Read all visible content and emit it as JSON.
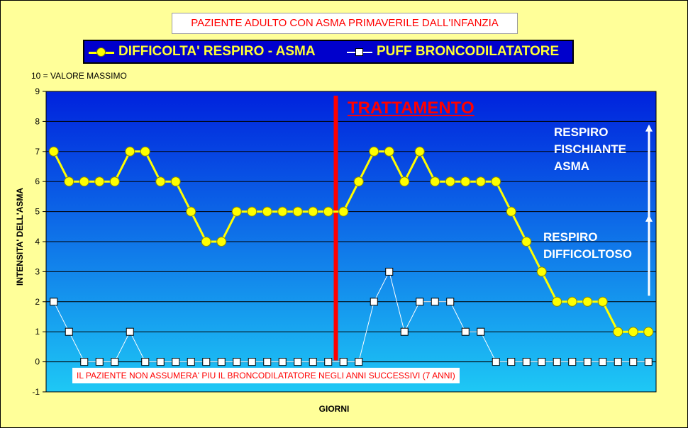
{
  "colors": {
    "frame_bg": "#ffff99",
    "plot_top": "#0022dd",
    "plot_bottom": "#1ec8f5",
    "series1_line": "#ffff00",
    "series1_marker": "#ffff00",
    "series2_line": "#ffffff",
    "series2_marker": "#ffffff",
    "treatment_line": "#ff0000"
  },
  "labels": {
    "title": "PAZIENTE ADULTO CON ASMA PRIMAVERILE DALL'INFANZIA",
    "ylabel": "INTENSITA' DELL'ASMA",
    "xlabel": "GIORNI",
    "max_note": "10 = VALORE MASSIMO",
    "treatment": "TRATTAMENTO",
    "footnote": "IL PAZIENTE NON ASSUMERA' PIU IL BRONCODILATATORE NEGLI ANNI SUCCESSIVI  (7 ANNI)",
    "annotation_upper": [
      "RESPIRO",
      "FISCHIANTE",
      "ASMA"
    ],
    "annotation_lower": [
      "RESPIRO",
      "DIFFICOLTOSO"
    ]
  },
  "chart_data": {
    "type": "line",
    "title": "PAZIENTE ADULTO CON ASMA PRIMAVERILE DALL'INFANZIA",
    "xlabel": "GIORNI",
    "ylabel": "INTENSITA' DELL'ASMA",
    "ylim": [
      -1,
      9
    ],
    "yticks": [
      -1,
      0,
      1,
      2,
      3,
      4,
      5,
      6,
      7,
      8,
      9
    ],
    "grid": true,
    "legend_position": "top",
    "point_count": 40,
    "treatment_after_point": 19,
    "series": [
      {
        "name": "DIFFICOLTA' RESPIRO - ASMA",
        "marker": "circle",
        "values": [
          7,
          6,
          6,
          6,
          6,
          7,
          7,
          6,
          6,
          5,
          4,
          4,
          5,
          5,
          5,
          5,
          5,
          5,
          5,
          5,
          6,
          7,
          7,
          6,
          7,
          6,
          6,
          6,
          6,
          6,
          5,
          4,
          3,
          2,
          2,
          2,
          2,
          1,
          1,
          1
        ]
      },
      {
        "name": "PUFF BRONCODILATATORE",
        "marker": "square",
        "values": [
          2,
          1,
          0,
          0,
          0,
          1,
          0,
          0,
          0,
          0,
          0,
          0,
          0,
          0,
          0,
          0,
          0,
          0,
          0,
          0,
          0,
          2,
          3,
          1,
          2,
          2,
          2,
          1,
          1,
          0,
          0,
          0,
          0,
          0,
          0,
          0,
          0,
          0,
          0,
          0
        ]
      }
    ]
  }
}
